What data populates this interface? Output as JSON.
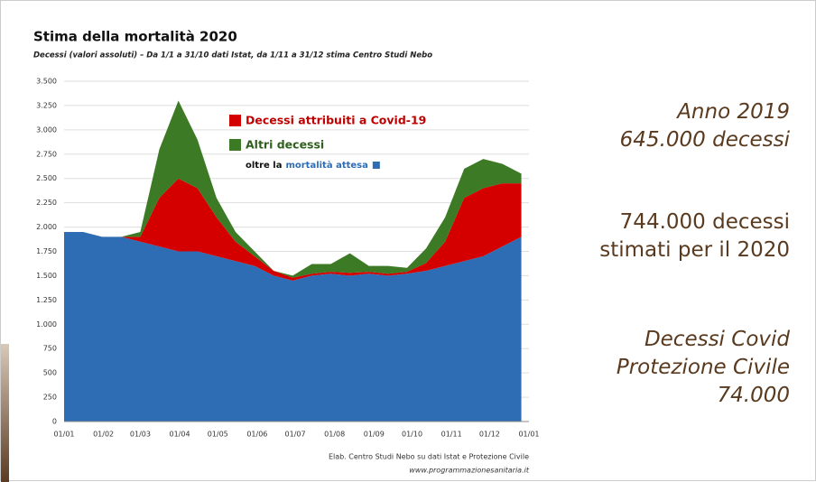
{
  "chart_data": {
    "type": "stacked_area",
    "title": "Stima della mortalità 2020",
    "subtitle": "Decessi (valori assoluti) – Da 1/1 a 31/10 dati Istat, da 1/11 a 31/12 stima Centro Studi Nebo",
    "x": [
      0,
      15,
      30,
      45,
      60,
      75,
      90,
      105,
      120,
      135,
      150,
      165,
      180,
      195,
      210,
      225,
      240,
      255,
      270,
      285,
      300,
      315,
      330,
      345,
      360
    ],
    "series": [
      {
        "name": "mortalità attesa",
        "color": "#2e6db4",
        "values": [
          1950,
          1950,
          1900,
          1900,
          1850,
          1800,
          1750,
          1750,
          1700,
          1650,
          1600,
          1500,
          1450,
          1500,
          1520,
          1500,
          1520,
          1500,
          1520,
          1550,
          1600,
          1650,
          1700,
          1800,
          1900
        ]
      },
      {
        "name": "Decessi attribuiti a Covid-19",
        "color": "#d40000",
        "values": [
          0,
          0,
          0,
          0,
          50,
          500,
          750,
          650,
          400,
          200,
          100,
          50,
          30,
          20,
          20,
          30,
          20,
          20,
          20,
          80,
          250,
          650,
          700,
          650,
          550
        ]
      },
      {
        "name": "Altri decessi",
        "color": "#3d7a25",
        "values": [
          0,
          0,
          0,
          0,
          50,
          500,
          800,
          500,
          200,
          100,
          50,
          0,
          20,
          100,
          80,
          200,
          60,
          80,
          40,
          150,
          250,
          300,
          300,
          200,
          100
        ]
      }
    ],
    "legend_note": "oltre la",
    "xlim": [
      0,
      366
    ],
    "xticks": [
      {
        "value": 0,
        "label": "01/01"
      },
      {
        "value": 31,
        "label": "01/02"
      },
      {
        "value": 60,
        "label": "01/03"
      },
      {
        "value": 91,
        "label": "01/04"
      },
      {
        "value": 121,
        "label": "01/05"
      },
      {
        "value": 152,
        "label": "01/06"
      },
      {
        "value": 182,
        "label": "01/07"
      },
      {
        "value": 213,
        "label": "01/08"
      },
      {
        "value": 244,
        "label": "01/09"
      },
      {
        "value": 274,
        "label": "01/10"
      },
      {
        "value": 305,
        "label": "01/11"
      },
      {
        "value": 335,
        "label": "01/12"
      },
      {
        "value": 366,
        "label": "01/01"
      }
    ],
    "ylim": [
      0,
      3500
    ],
    "yticks": [
      0,
      250,
      500,
      750,
      {
        "value": 1000,
        "label": "1.000"
      },
      {
        "value": 1250,
        "label": "1.250"
      },
      {
        "value": 1500,
        "label": "1.500"
      },
      {
        "value": 1750,
        "label": "1.750"
      },
      {
        "value": 2000,
        "label": "2.000"
      },
      {
        "value": 2250,
        "label": "2.250"
      },
      {
        "value": 2500,
        "label": "2.500"
      },
      {
        "value": 2750,
        "label": "2.750"
      },
      {
        "value": 3000,
        "label": "3.000"
      },
      {
        "value": 3250,
        "label": "3.250"
      },
      {
        "value": 3500,
        "label": "3.500"
      }
    ],
    "grid": true,
    "source": [
      "Elab. Centro Studi Nebo su dati Istat e Protezione Civile",
      "www.programmazionesanitaria.it"
    ]
  },
  "side_notes": [
    "Anno 2019",
    "645.000 decessi",
    "744.000 decessi",
    "stimati per il 2020",
    "Decessi Covid",
    "Protezione Civile",
    "74.000"
  ]
}
